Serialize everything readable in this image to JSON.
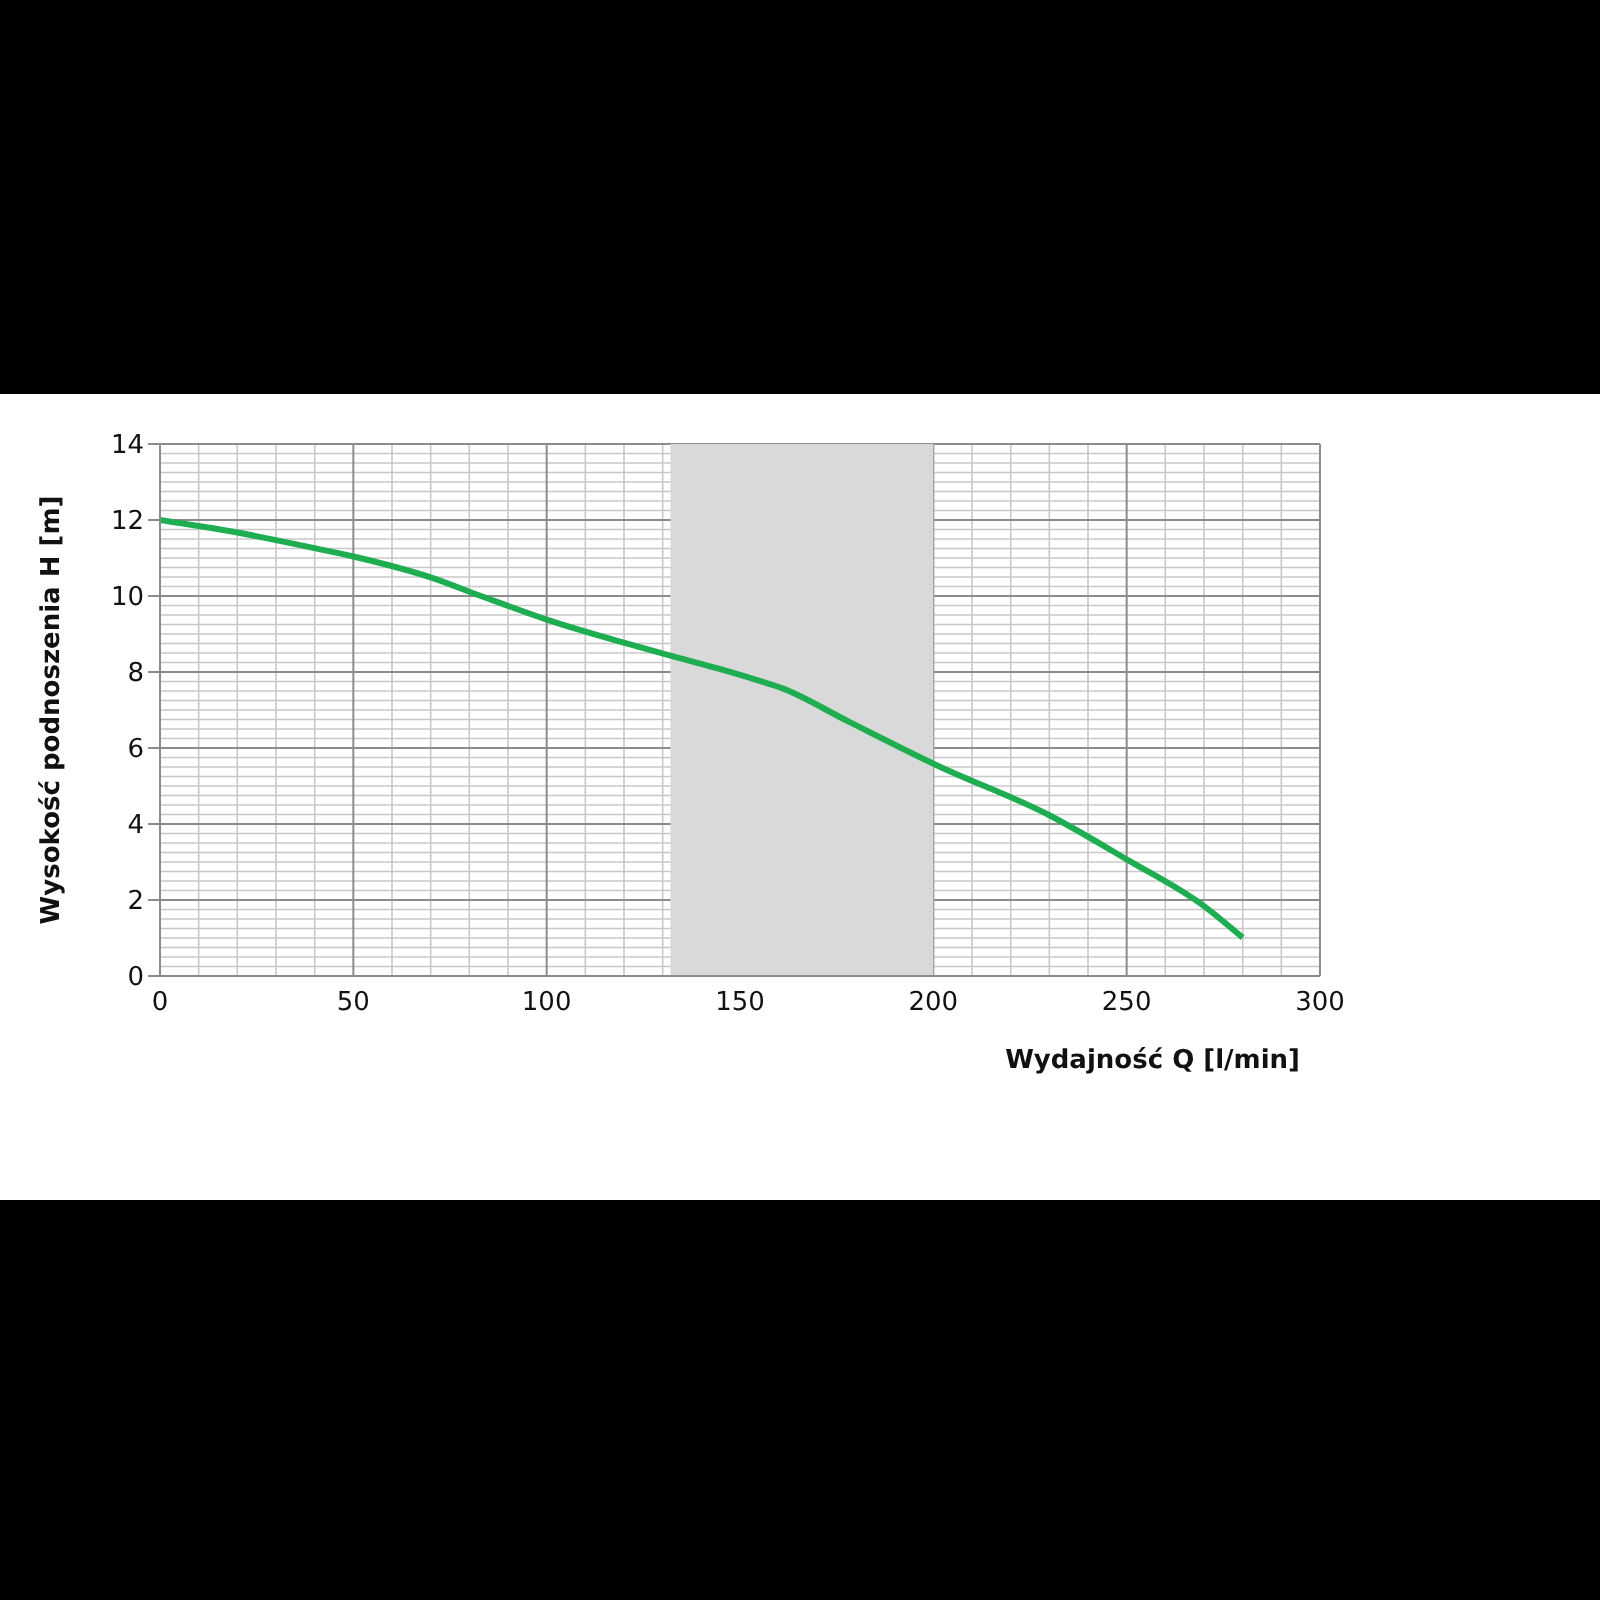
{
  "chart_data": {
    "type": "line",
    "xlabel": "Wydajność Q [l/min]",
    "ylabel": "Wysokość podnoszenia H [m]",
    "x": [
      0,
      20,
      40,
      50,
      70,
      83,
      100,
      119,
      132,
      144,
      154,
      161,
      178,
      201,
      230,
      250,
      270,
      280
    ],
    "series": [
      {
        "color": "#1fad52",
        "values": [
          12.0,
          11.67,
          11.26,
          11.04,
          10.49,
          10.0,
          9.38,
          8.8,
          8.43,
          8.1,
          7.8,
          7.57,
          6.7,
          5.54,
          4.23,
          3.07,
          1.84,
          1.01
        ]
      }
    ],
    "xlim": [
      0,
      300
    ],
    "xticks": [
      0,
      50,
      100,
      150,
      200,
      250,
      300
    ],
    "ylim": [
      0,
      14
    ],
    "yticks": [
      0,
      2,
      4,
      6,
      8,
      10,
      12,
      14
    ],
    "bands": [
      {
        "axis": "x",
        "from": 132,
        "to": 200,
        "color": "#d9d9d9"
      }
    ],
    "grid": true,
    "marker": "none",
    "line_style": "solid"
  }
}
